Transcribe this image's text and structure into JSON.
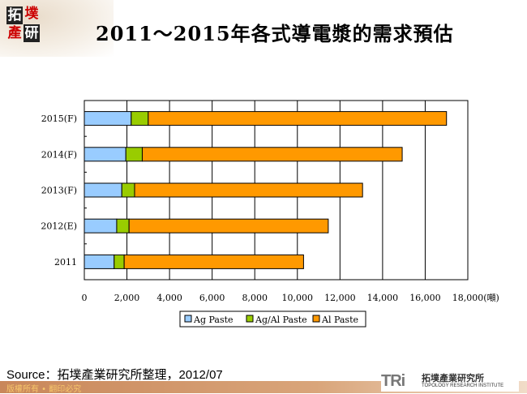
{
  "logo_text": "拓墣產研",
  "page_title": "2011～2015年各式導電漿的需求預估",
  "chart_data": {
    "type": "bar",
    "orientation": "horizontal",
    "stacked": true,
    "categories": [
      "2011",
      "2012(E)",
      "2013(F)",
      "2014(F)",
      "2015(F)"
    ],
    "series": [
      {
        "name": "Ag Paste",
        "color": "#99ccff",
        "values": [
          1400,
          1520,
          1760,
          1950,
          2200
        ]
      },
      {
        "name": "Ag/Al Paste",
        "color": "#99cc00",
        "values": [
          470,
          580,
          600,
          770,
          800
        ]
      },
      {
        "name": "Al Paste",
        "color": "#ff9900",
        "values": [
          8420,
          9350,
          10700,
          12200,
          14000
        ]
      }
    ],
    "xlim": [
      0,
      18000
    ],
    "xticks": [
      "0",
      "2,000",
      "4,000",
      "6,000",
      "8,000",
      "10,000",
      "12,000",
      "14,000",
      "16,000",
      "18,000"
    ],
    "xunit": "(噸)",
    "grid": true,
    "legend": "bottom"
  },
  "source": "Source：拓墣產業研究所整理，2012/07",
  "footer": {
    "copyright": "版權所有 • 翻印必究",
    "brand_mark": "TRi",
    "brand_cn": "拓墣產業研究所",
    "brand_en": "TOPOLOGY RESEARCH INSTITUTE"
  }
}
